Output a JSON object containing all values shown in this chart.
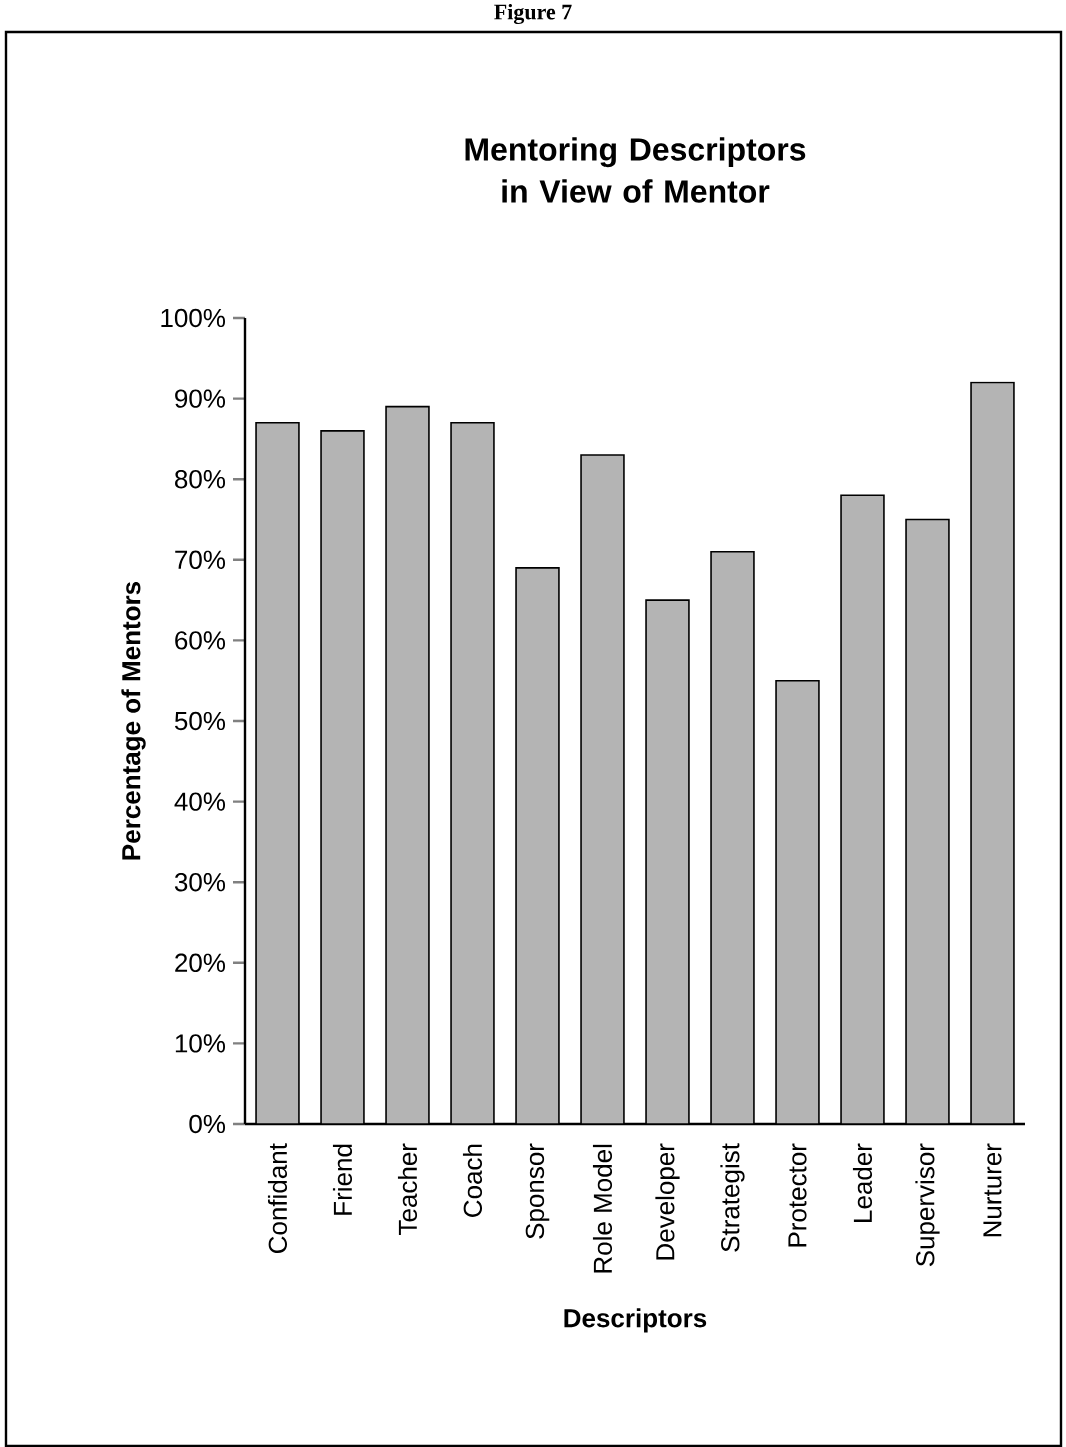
{
  "chart_data": {
    "type": "bar",
    "title": "Mentoring Descriptors in View of Mentor",
    "xlabel": "Descriptors",
    "ylabel": "Percentage of Mentors",
    "annotations": [
      "Figure 7"
    ],
    "categories": [
      "Confidant",
      "Friend",
      "Teacher",
      "Coach",
      "Sponsor",
      "Role Model",
      "Developer",
      "Strategist",
      "Protector",
      "Leader",
      "Supervisor",
      "Nurturer"
    ],
    "values": [
      87,
      86,
      89,
      87,
      69,
      83,
      65,
      71,
      55,
      78,
      75,
      92
    ],
    "color": "#b4b4b4",
    "ylim": [
      0,
      100
    ],
    "yticks": [
      {
        "value": 0,
        "label": "0%"
      },
      {
        "value": 10,
        "label": "10%"
      },
      {
        "value": 20,
        "label": "20%"
      },
      {
        "value": 30,
        "label": "30%"
      },
      {
        "value": 40,
        "label": "40%"
      },
      {
        "value": 50,
        "label": "50%"
      },
      {
        "value": 60,
        "label": "60%"
      },
      {
        "value": 70,
        "label": "70%"
      },
      {
        "value": 80,
        "label": "80%"
      },
      {
        "value": 90,
        "label": "90%"
      },
      {
        "value": 100,
        "label": "100%"
      }
    ],
    "grid": false
  }
}
